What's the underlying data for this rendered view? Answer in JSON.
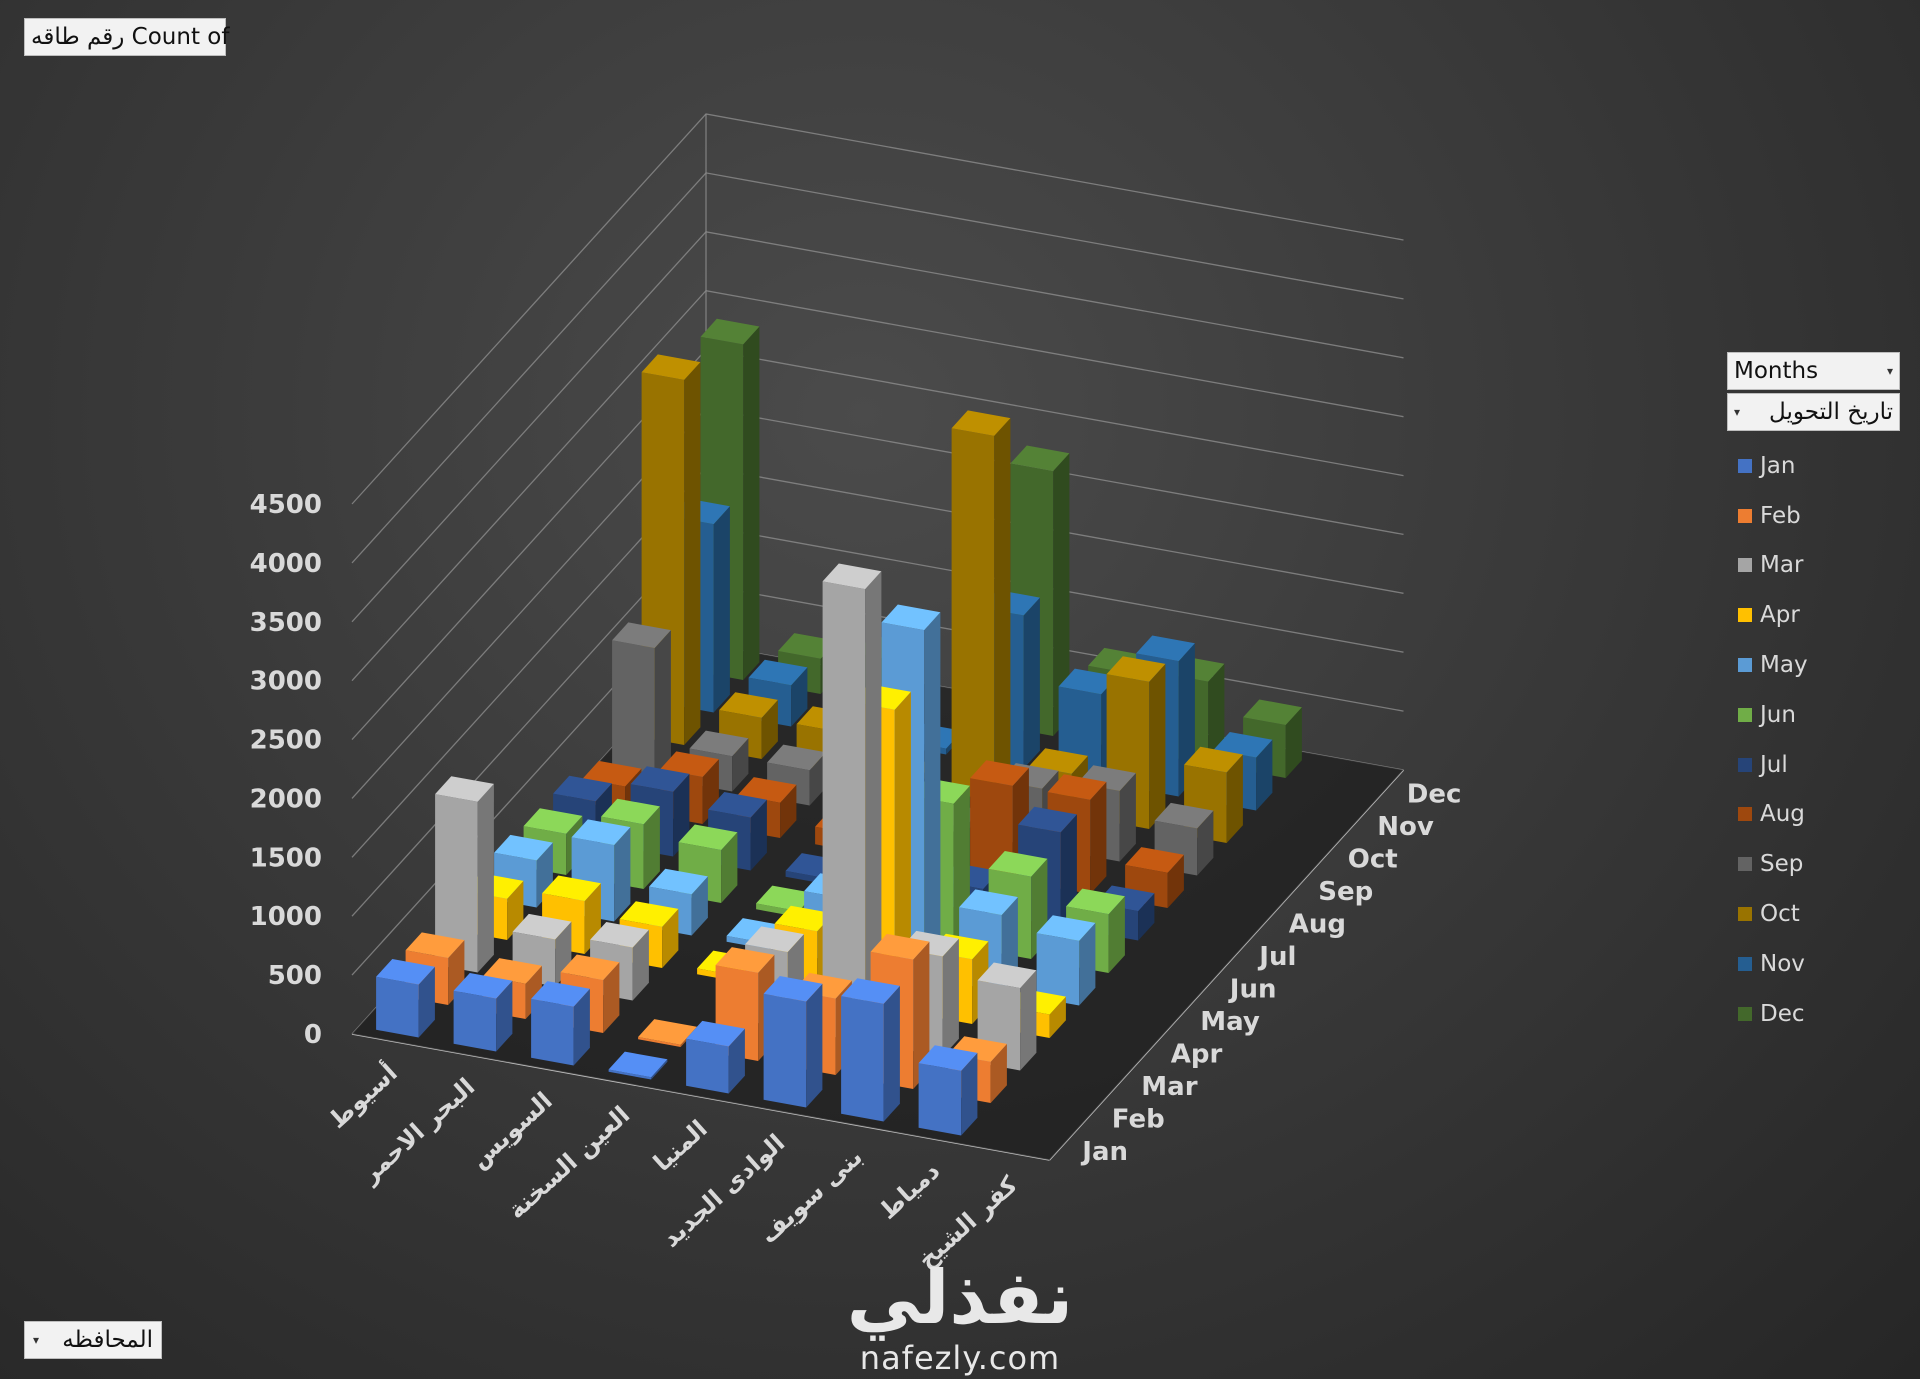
{
  "value_field": {
    "label": "Count of رقم طاقه"
  },
  "axis_field": {
    "label": "المحافظه",
    "icon": "dropdown-arrow-icon"
  },
  "legend_fields": {
    "months": "Months",
    "date": "تاريخ التحويل",
    "icon": "dropdown-arrow-icon"
  },
  "watermark": {
    "brand": "نفذلي",
    "url": "nafezly.com"
  },
  "chart_data": {
    "type": "bar",
    "variant": "3d-column",
    "categories": [
      "أسيوط",
      "البحر الاحمر",
      "السويس",
      "العين السخنة",
      "المنيا",
      "الوادى الجديد",
      "بنى سويف",
      "دمياط",
      "كفر الشيخ"
    ],
    "depth_labels": [
      "Jan",
      "Feb",
      "Mar",
      "Apr",
      "May",
      "Jun",
      "Jul",
      "Aug",
      "Sep",
      "Oct",
      "Nov",
      "Dec"
    ],
    "ylim": [
      0,
      4500
    ],
    "yticks": [
      0,
      500,
      1000,
      1500,
      2000,
      2500,
      3000,
      3500,
      4000,
      4500
    ],
    "grid": true,
    "legend_position": "right",
    "series": [
      {
        "name": "Jan",
        "color": "#4472C4",
        "values": [
          450,
          450,
          500,
          20,
          400,
          900,
          1000,
          550,
          0
        ]
      },
      {
        "name": "Feb",
        "color": "#ED7D31",
        "values": [
          400,
          300,
          450,
          20,
          750,
          650,
          1100,
          350,
          0
        ]
      },
      {
        "name": "Mar",
        "color": "#A5A5A5",
        "values": [
          1450,
          400,
          450,
          0,
          650,
          3850,
          850,
          700,
          0
        ]
      },
      {
        "name": "Apr",
        "color": "#FFC000",
        "values": [
          350,
          450,
          350,
          50,
          550,
          2550,
          550,
          200,
          0
        ]
      },
      {
        "name": "May",
        "color": "#5B9BD5",
        "values": [
          400,
          650,
          350,
          50,
          550,
          2950,
          650,
          550,
          0
        ]
      },
      {
        "name": "Jun",
        "color": "#70AD47",
        "values": [
          350,
          550,
          450,
          50,
          200,
          1200,
          700,
          500,
          0
        ]
      },
      {
        "name": "Jul",
        "color": "#264478",
        "values": [
          350,
          550,
          450,
          50,
          350,
          200,
          800,
          250,
          0
        ]
      },
      {
        "name": "Aug",
        "color": "#9E480E",
        "values": [
          200,
          400,
          300,
          150,
          50,
          800,
          800,
          300,
          0
        ]
      },
      {
        "name": "Sep",
        "color": "#636363",
        "values": [
          1100,
          300,
          300,
          100,
          50,
          500,
          600,
          400,
          0
        ]
      },
      {
        "name": "Oct",
        "color": "#997300",
        "values": [
          3100,
          350,
          350,
          50,
          3100,
          350,
          1250,
          600,
          0
        ]
      },
      {
        "name": "Nov",
        "color": "#255E91",
        "values": [
          1600,
          350,
          100,
          50,
          1300,
          750,
          1150,
          450,
          0
        ]
      },
      {
        "name": "Dec",
        "color": "#43682B",
        "values": [
          2850,
          300,
          400,
          0,
          2250,
          650,
          700,
          450,
          0
        ]
      }
    ]
  }
}
